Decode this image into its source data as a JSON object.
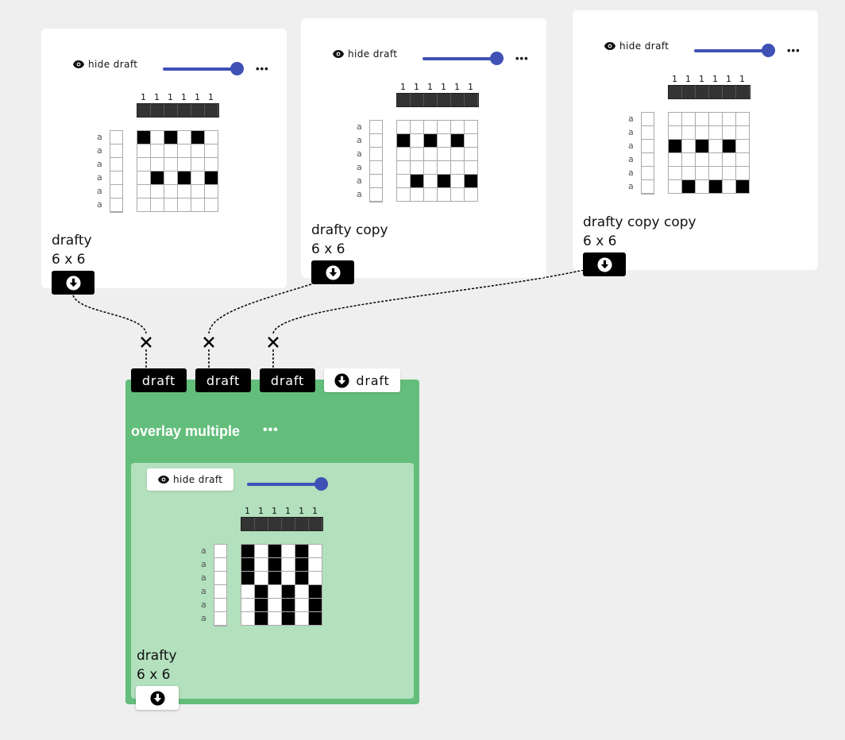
{
  "nodes": [
    {
      "hide_label": "hide draft",
      "name": "drafty",
      "size": "6 x 6",
      "warp_numbers": [
        "1",
        "1",
        "1",
        "1",
        "1",
        "1"
      ],
      "weft_labels": [
        "a",
        "a",
        "a",
        "a",
        "a",
        "a"
      ],
      "pattern": [
        [
          1,
          0,
          1,
          0,
          1,
          0
        ],
        [
          0,
          0,
          0,
          0,
          0,
          0
        ],
        [
          0,
          0,
          0,
          0,
          0,
          0
        ],
        [
          0,
          1,
          0,
          1,
          0,
          1
        ],
        [
          0,
          0,
          0,
          0,
          0,
          0
        ],
        [
          0,
          0,
          0,
          0,
          0,
          0
        ]
      ]
    },
    {
      "hide_label": "hide draft",
      "name": "drafty copy",
      "size": "6 x 6",
      "warp_numbers": [
        "1",
        "1",
        "1",
        "1",
        "1",
        "1"
      ],
      "weft_labels": [
        "a",
        "a",
        "a",
        "a",
        "a",
        "a"
      ],
      "pattern": [
        [
          0,
          0,
          0,
          0,
          0,
          0
        ],
        [
          1,
          0,
          1,
          0,
          1,
          0
        ],
        [
          0,
          0,
          0,
          0,
          0,
          0
        ],
        [
          0,
          0,
          0,
          0,
          0,
          0
        ],
        [
          0,
          1,
          0,
          1,
          0,
          1
        ],
        [
          0,
          0,
          0,
          0,
          0,
          0
        ]
      ]
    },
    {
      "hide_label": "hide draft",
      "name": "drafty copy copy",
      "size": "6 x 6",
      "warp_numbers": [
        "1",
        "1",
        "1",
        "1",
        "1",
        "1"
      ],
      "weft_labels": [
        "a",
        "a",
        "a",
        "a",
        "a",
        "a"
      ],
      "pattern": [
        [
          0,
          0,
          0,
          0,
          0,
          0
        ],
        [
          0,
          0,
          0,
          0,
          0,
          0
        ],
        [
          1,
          0,
          1,
          0,
          1,
          0
        ],
        [
          0,
          0,
          0,
          0,
          0,
          0
        ],
        [
          0,
          0,
          0,
          0,
          0,
          0
        ],
        [
          0,
          1,
          0,
          1,
          0,
          1
        ]
      ]
    }
  ],
  "operation": {
    "title": "overlay multiple",
    "more_label": "•••",
    "inlets": [
      "draft",
      "draft",
      "draft"
    ],
    "outlet_label": "draft",
    "result": {
      "hide_label": "hide draft",
      "name": "drafty",
      "size": "6 x 6",
      "warp_numbers": [
        "1",
        "1",
        "1",
        "1",
        "1",
        "1"
      ],
      "weft_labels": [
        "a",
        "a",
        "a",
        "a",
        "a",
        "a"
      ],
      "pattern": [
        [
          1,
          0,
          1,
          0,
          1,
          0
        ],
        [
          1,
          0,
          1,
          0,
          1,
          0
        ],
        [
          1,
          0,
          1,
          0,
          1,
          0
        ],
        [
          0,
          1,
          0,
          1,
          0,
          1
        ],
        [
          0,
          1,
          0,
          1,
          0,
          1
        ],
        [
          0,
          1,
          0,
          1,
          0,
          1
        ]
      ]
    }
  },
  "more_label": "•••",
  "colors": {
    "background": "#efefef",
    "accent": "#3f51b5",
    "operation": "#63be7b",
    "operation_inner": "#b3e0bd"
  },
  "icons": {
    "eye": "eye-icon",
    "download": "download-circle-icon",
    "disconnect": "close-x-icon"
  }
}
